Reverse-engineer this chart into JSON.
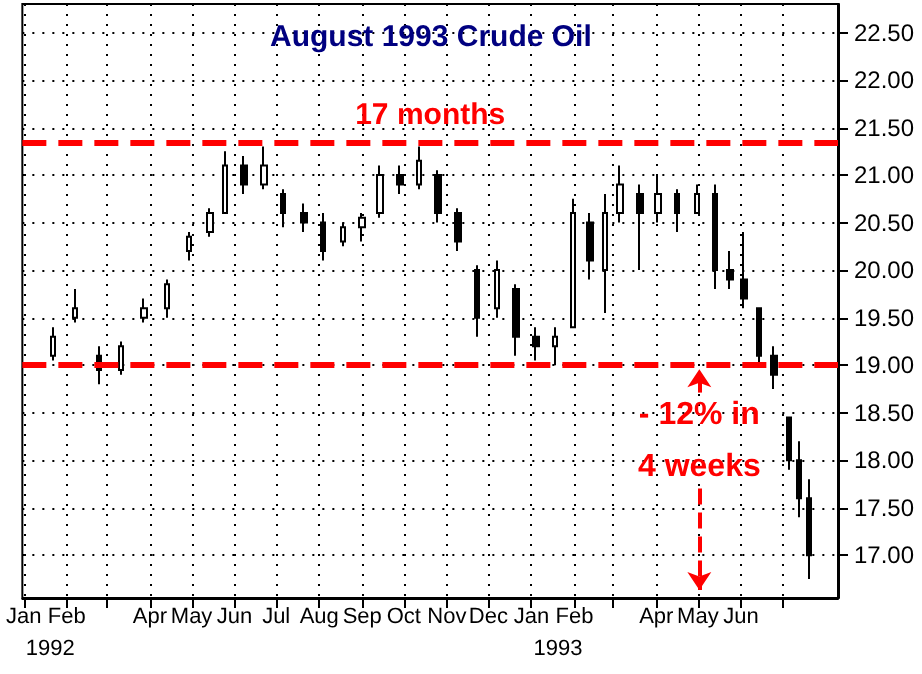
{
  "chart_data": {
    "type": "candlestick",
    "title": "August 1993 Crude Oil",
    "color": "#000000",
    "x": [
      "1992-01-22",
      "1992-02-07",
      "1992-02-24",
      "1992-03-11",
      "1992-03-28",
      "1992-04-13",
      "1992-04-29",
      "1992-05-14",
      "1992-05-25",
      "1992-06-08",
      "1992-06-22",
      "1992-07-06",
      "1992-07-21",
      "1992-08-04",
      "1992-08-18",
      "1992-09-01",
      "1992-09-14",
      "1992-09-28",
      "1992-10-12",
      "1992-10-26",
      "1992-11-09",
      "1992-11-23",
      "1992-12-07",
      "1992-12-21",
      "1993-01-04",
      "1993-01-18",
      "1993-01-31",
      "1993-02-12",
      "1993-02-23",
      "1993-03-06",
      "1993-03-20",
      "1993-04-02",
      "1993-04-16",
      "1993-04-30",
      "1993-05-13",
      "1993-05-24",
      "1993-06-03",
      "1993-06-14",
      "1993-06-25",
      "1993-07-06",
      "1993-07-13",
      "1993-07-20"
    ],
    "ohlc": [
      [
        19.1,
        19.4,
        19.05,
        19.3
      ],
      [
        19.5,
        19.8,
        19.45,
        19.6
      ],
      [
        19.1,
        19.2,
        18.8,
        18.95
      ],
      [
        18.95,
        19.25,
        18.9,
        19.2
      ],
      [
        19.5,
        19.7,
        19.45,
        19.6
      ],
      [
        19.6,
        19.9,
        19.5,
        19.85
      ],
      [
        20.2,
        20.4,
        20.1,
        20.35
      ],
      [
        20.4,
        20.65,
        20.35,
        20.6
      ],
      [
        20.6,
        21.25,
        20.6,
        21.1
      ],
      [
        21.1,
        21.2,
        20.8,
        20.9
      ],
      [
        20.9,
        21.3,
        20.85,
        21.1
      ],
      [
        20.8,
        20.85,
        20.45,
        20.6
      ],
      [
        20.6,
        20.7,
        20.4,
        20.5
      ],
      [
        20.5,
        20.6,
        20.1,
        20.2
      ],
      [
        20.3,
        20.5,
        20.25,
        20.45
      ],
      [
        20.45,
        20.6,
        20.3,
        20.55
      ],
      [
        20.6,
        21.1,
        20.55,
        21.0
      ],
      [
        21.0,
        21.1,
        20.8,
        20.9
      ],
      [
        20.9,
        21.3,
        20.85,
        21.15
      ],
      [
        21.0,
        21.05,
        20.5,
        20.6
      ],
      [
        20.6,
        20.65,
        20.2,
        20.3
      ],
      [
        20.0,
        20.05,
        19.3,
        19.5
      ],
      [
        19.6,
        20.1,
        19.5,
        20.0
      ],
      [
        19.8,
        19.85,
        19.1,
        19.3
      ],
      [
        19.3,
        19.4,
        19.05,
        19.2
      ],
      [
        19.2,
        19.4,
        19.0,
        19.3
      ],
      [
        19.4,
        20.75,
        19.4,
        20.6
      ],
      [
        20.5,
        20.6,
        19.9,
        20.1
      ],
      [
        20.0,
        20.8,
        19.55,
        20.6
      ],
      [
        20.6,
        21.1,
        20.5,
        20.9
      ],
      [
        20.8,
        20.9,
        20.0,
        20.6
      ],
      [
        20.6,
        21.0,
        20.5,
        20.8
      ],
      [
        20.8,
        20.85,
        20.4,
        20.6
      ],
      [
        20.6,
        20.9,
        20.6,
        20.8
      ],
      [
        20.8,
        20.9,
        19.8,
        20.0
      ],
      [
        20.0,
        20.2,
        19.8,
        19.9
      ],
      [
        19.9,
        20.4,
        19.6,
        19.7
      ],
      [
        19.6,
        19.6,
        19.0,
        19.1
      ],
      [
        19.1,
        19.2,
        18.75,
        18.9
      ],
      [
        18.45,
        18.45,
        17.9,
        18.0
      ],
      [
        18.0,
        18.2,
        17.4,
        17.6
      ],
      [
        17.6,
        17.8,
        16.75,
        17.0
      ]
    ],
    "xlim": [
      "1991-12-31",
      "1993-08-10"
    ],
    "xticks": [
      {
        "value": "1992-01-01",
        "label": "Jan"
      },
      {
        "value": "1992-02-01",
        "label": "Feb"
      },
      {
        "value": "1992-03-01",
        "label": null
      },
      {
        "value": "1992-04-01",
        "label": "Apr"
      },
      {
        "value": "1992-05-01",
        "label": "May"
      },
      {
        "value": "1992-06-01",
        "label": "Jun"
      },
      {
        "value": "1992-07-01",
        "label": "Jul"
      },
      {
        "value": "1992-08-01",
        "label": "Aug"
      },
      {
        "value": "1992-09-01",
        "label": "Sep"
      },
      {
        "value": "1992-10-01",
        "label": "Oct"
      },
      {
        "value": "1992-11-01",
        "label": "Nov"
      },
      {
        "value": "1992-12-01",
        "label": "Dec"
      },
      {
        "value": "1993-01-01",
        "label": "Jan"
      },
      {
        "value": "1993-02-01",
        "label": "Feb"
      },
      {
        "value": "1993-03-01",
        "label": null
      },
      {
        "value": "1993-04-01",
        "label": "Apr"
      },
      {
        "value": "1993-05-01",
        "label": "May"
      },
      {
        "value": "1993-06-01",
        "label": "Jun"
      },
      {
        "value": "1993-07-01",
        "label": null
      }
    ],
    "ylim": [
      16.55,
      22.8
    ],
    "yticks": [
      {
        "value": 17,
        "label": "17.00"
      },
      {
        "value": 17.5,
        "label": "17.50"
      },
      {
        "value": 18,
        "label": "18.00"
      },
      {
        "value": 18.5,
        "label": "18.50"
      },
      {
        "value": 19,
        "label": "19.00"
      },
      {
        "value": 19.5,
        "label": "19.50"
      },
      {
        "value": 20,
        "label": "20.00"
      },
      {
        "value": 20.5,
        "label": "20.50"
      },
      {
        "value": 21,
        "label": "21.00"
      },
      {
        "value": 21.5,
        "label": "21.50"
      },
      {
        "value": 22,
        "label": "22.00"
      },
      {
        "value": 22.5,
        "label": "22.50"
      }
    ],
    "grid": true,
    "ref_lines": [
      {
        "axis": "y",
        "value": 21.35,
        "label": "17 months",
        "color": "#ff0000",
        "line_style": "dashed"
      },
      {
        "axis": "y",
        "value": 19.0,
        "label": null,
        "color": "#ff0000",
        "line_style": "dashed"
      }
    ],
    "annotations": [
      "- 12% in\n4 weeks",
      "1992",
      "1993"
    ]
  }
}
